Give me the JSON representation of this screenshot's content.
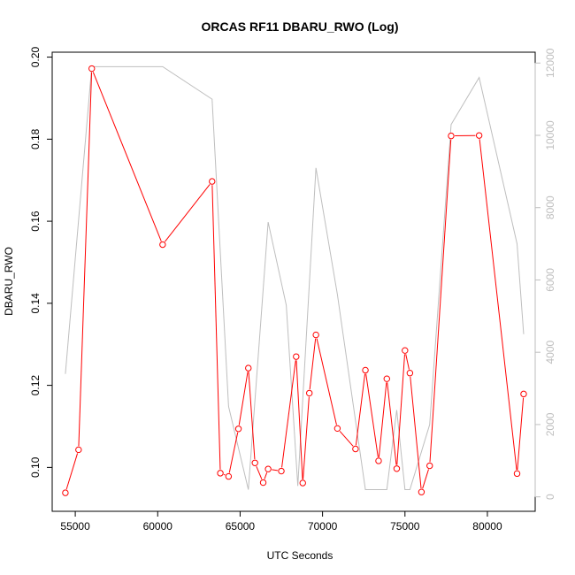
{
  "chart_data": {
    "type": "line",
    "title": "ORCAS RF11 DBARU_RWO (Log)",
    "xlabel": "UTC Seconds",
    "ylabel": "DBARU_RWO",
    "xlim": [
      53600,
      82900
    ],
    "ylim": [
      0.0893,
      0.2012
    ],
    "y2lim": [
      -400,
      12300
    ],
    "xticks": [
      55000,
      60000,
      65000,
      70000,
      75000,
      80000
    ],
    "yticks": [
      0.1,
      0.12,
      0.14,
      0.16,
      0.18,
      0.2
    ],
    "y2ticks": [
      0,
      2000,
      4000,
      6000,
      8000,
      10000,
      12000
    ],
    "grid": false,
    "legend": "none",
    "colors": {
      "primary": "#ff0000",
      "secondary": "#bebebe"
    },
    "series": [
      {
        "axis": "left",
        "style": "line-points",
        "color": "#ff0000",
        "x": [
          54400,
          55200,
          56000,
          60300,
          63300,
          63800,
          64300,
          64900,
          65500,
          65900,
          66400,
          66700,
          67500,
          68400,
          68800,
          69200,
          69600,
          70900,
          72000,
          72600,
          73400,
          73900,
          74500,
          75000,
          75300,
          76000,
          76500,
          77800,
          79500,
          81800,
          82200
        ],
        "y": [
          0.0938,
          0.1043,
          0.1972,
          0.1543,
          0.1697,
          0.0986,
          0.0978,
          0.1094,
          0.1242,
          0.1011,
          0.0963,
          0.0996,
          0.0991,
          0.127,
          0.0962,
          0.1181,
          0.1323,
          0.1095,
          0.1045,
          0.1237,
          0.1016,
          0.1216,
          0.0997,
          0.1285,
          0.123,
          0.094,
          0.1004,
          0.1808,
          0.1809,
          0.0985,
          0.1179
        ]
      },
      {
        "axis": "right",
        "style": "line",
        "color": "#bebebe",
        "x": [
          54400,
          56000,
          60300,
          63300,
          64300,
          65500,
          66700,
          67800,
          68500,
          69600,
          70900,
          72600,
          73900,
          74500,
          75000,
          75300,
          76500,
          77800,
          79500,
          81800,
          82200
        ],
        "y": [
          3400,
          11900,
          11900,
          11000,
          2500,
          200,
          7600,
          5300,
          300,
          9100,
          5600,
          200,
          200,
          2400,
          200,
          200,
          2000,
          10300,
          11600,
          7000,
          4500
        ]
      }
    ]
  }
}
